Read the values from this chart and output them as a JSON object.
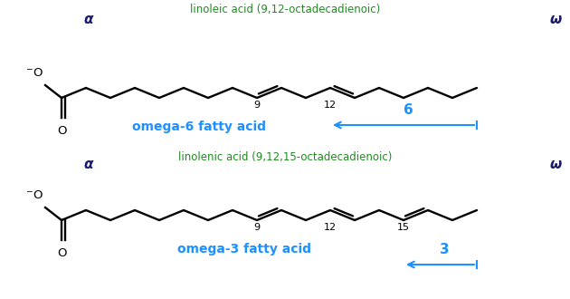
{
  "bg_color": "#ffffff",
  "title_color": "#228B22",
  "label_color": "#191970",
  "arrow_color": "#1E90FF",
  "bond_color": "#000000",
  "omega6_title": "linoleic acid (9,12-octadecadienoic)",
  "omega6_label": "omega-6 fatty acid",
  "omega6_number": "6",
  "omega3_title": "linolenic acid (9,12,15-octadecadienoic)",
  "omega3_label": "omega-3 fatty acid",
  "omega3_number": "3",
  "alpha_label": "α",
  "omega_label": "ω",
  "figsize": [
    6.3,
    3.3
  ],
  "dpi": 100,
  "xlim": [
    0,
    630
  ],
  "ylim": [
    0,
    330
  ]
}
